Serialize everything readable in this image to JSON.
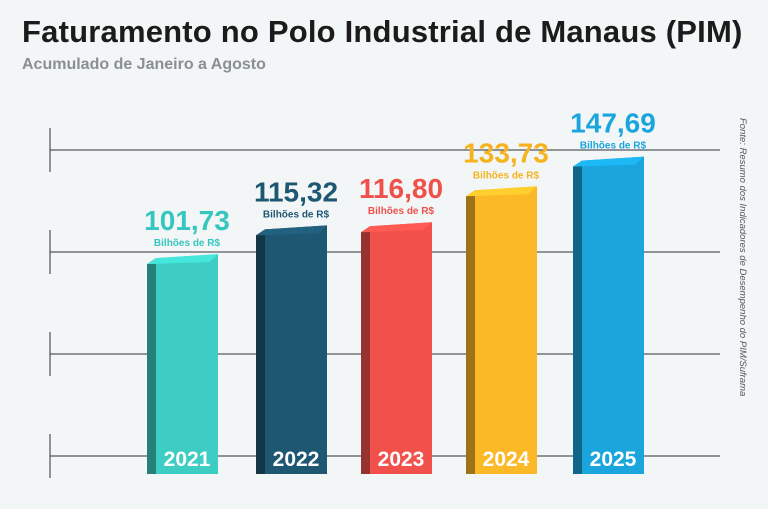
{
  "title": "Faturamento no Polo Industrial de Manaus (PIM)",
  "subtitle": "Acumulado de Janeiro a Agosto",
  "source": "Fonte: Resumo dos Indicadores de Desempenho do PIM/Suframa",
  "chart_data": {
    "type": "bar",
    "title": "Faturamento no Polo Industrial de Manaus (PIM)",
    "subtitle": "Acumulado de Janeiro a Agosto",
    "categories": [
      "2021",
      "2022",
      "2023",
      "2024",
      "2025"
    ],
    "values": [
      101.73,
      115.32,
      116.8,
      133.73,
      147.69
    ],
    "value_labels": [
      "101,73",
      "115,32",
      "116,80",
      "133,73",
      "147,69"
    ],
    "unit_label": "Bilhões de R$",
    "ylim": [
      0,
      160
    ],
    "grid": true,
    "colors": [
      "#3ecdc4",
      "#1e5772",
      "#f2504b",
      "#fbb928",
      "#1aa5dc"
    ],
    "label_colors": [
      "#35c7bf",
      "#1e5772",
      "#f0504b",
      "#f5b31f",
      "#1aa5dc"
    ]
  }
}
